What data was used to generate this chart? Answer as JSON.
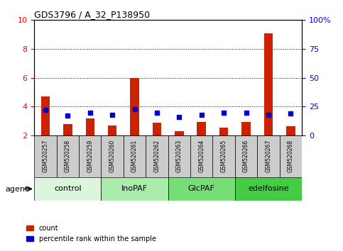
{
  "title": "GDS3796 / A_32_P138950",
  "samples": [
    "GSM520257",
    "GSM520258",
    "GSM520259",
    "GSM520260",
    "GSM520261",
    "GSM520262",
    "GSM520263",
    "GSM520264",
    "GSM520265",
    "GSM520266",
    "GSM520267",
    "GSM520268"
  ],
  "red_values": [
    4.7,
    2.8,
    3.2,
    2.7,
    6.0,
    2.9,
    2.3,
    2.95,
    2.55,
    2.95,
    9.1,
    2.65
  ],
  "blue_values_pct": [
    22,
    17,
    20,
    18,
    23,
    20,
    16,
    18,
    20,
    20,
    18,
    19
  ],
  "groups": [
    {
      "label": "control",
      "start": 0,
      "end": 3,
      "color": "#ddf5dd"
    },
    {
      "label": "InoPAF",
      "start": 3,
      "end": 6,
      "color": "#aaeaaa"
    },
    {
      "label": "GlcPAF",
      "start": 6,
      "end": 9,
      "color": "#77dd77"
    },
    {
      "label": "edelfosine",
      "start": 9,
      "end": 12,
      "color": "#44cc44"
    }
  ],
  "ylim_left": [
    2,
    10
  ],
  "ylim_right": [
    0,
    100
  ],
  "yticks_left": [
    2,
    4,
    6,
    8,
    10
  ],
  "yticks_right": [
    0,
    25,
    50,
    75,
    100
  ],
  "yticklabels_right": [
    "0",
    "25",
    "50",
    "75",
    "100%"
  ],
  "bar_color": "#cc2200",
  "marker_color": "#0000cc",
  "marker_size": 5,
  "bar_width": 0.4,
  "background_color": "#ffffff",
  "grid_color": "#000000",
  "label_count": "count",
  "label_percentile": "percentile rank within the sample",
  "agent_label": "agent",
  "tick_label_color_left": "red",
  "tick_label_color_right": "blue",
  "xlabel_bg_color": "#cccccc"
}
